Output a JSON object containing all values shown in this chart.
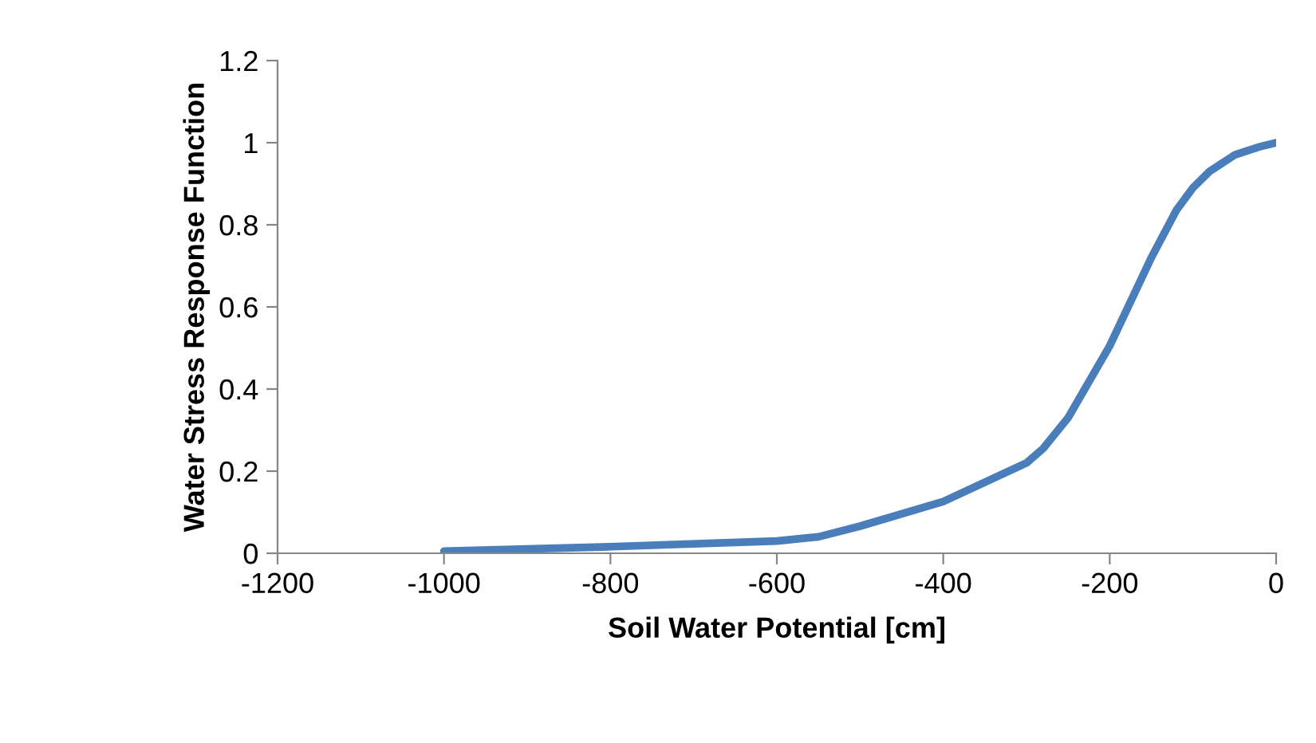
{
  "chart_data": {
    "type": "line",
    "xlabel": "Soil Water Potential [cm]",
    "ylabel": "Water Stress Response Function",
    "series": [
      {
        "color": "#4a7ebb",
        "x": [
          -1000,
          -800,
          -600,
          -550,
          -500,
          -400,
          -300,
          -280,
          -250,
          -200,
          -150,
          -120,
          -100,
          -80,
          -50,
          -20,
          0
        ],
        "values": [
          0.005,
          0.016,
          0.03,
          0.04,
          0.066,
          0.126,
          0.22,
          0.255,
          0.33,
          0.505,
          0.72,
          0.835,
          0.89,
          0.93,
          0.97,
          0.99,
          1.0
        ]
      }
    ],
    "xlim": [
      -1200,
      0
    ],
    "xticks": [
      -1200,
      -1000,
      -800,
      -600,
      -400,
      -200,
      0
    ],
    "ylim": [
      0,
      1.2
    ],
    "yticks": [
      0,
      0.2,
      0.4,
      0.6,
      0.8,
      1,
      1.2
    ],
    "grid": false,
    "legend": false,
    "marker": "none",
    "line_style": "solid"
  }
}
